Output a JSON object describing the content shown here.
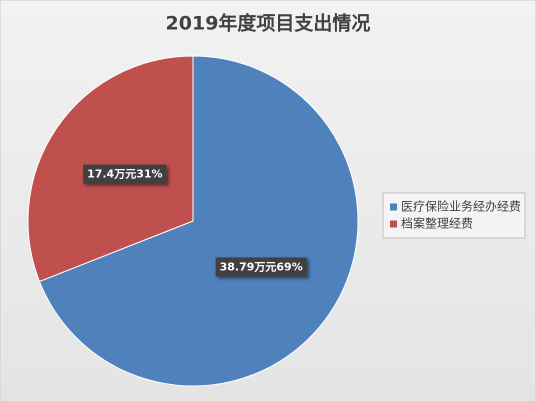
{
  "chart_data": {
    "type": "pie",
    "title": "2019年度项目支出情况",
    "categories": [
      "医疗保险业务经办经费",
      "档案整理经费"
    ],
    "values": [
      38.79,
      17.4
    ],
    "value_labels": [
      "38.79万元69%",
      "17.4万元31%"
    ],
    "colors": [
      "#4f81bd",
      "#c0504d"
    ],
    "legend": "right"
  }
}
